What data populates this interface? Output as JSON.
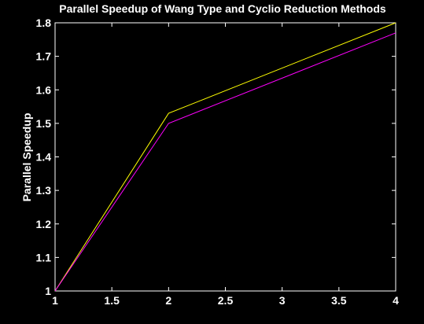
{
  "chart_data": {
    "type": "line",
    "title": "Parallel Speedup of Wang Type and Cyclio Reduction Methods",
    "xlabel": "",
    "ylabel": "Parallel Speedup",
    "xlim": [
      1,
      4
    ],
    "ylim": [
      1,
      1.8
    ],
    "xticks": [
      "1",
      "1.5",
      "2",
      "2.5",
      "3",
      "3.5",
      "4"
    ],
    "yticks": [
      "1",
      "1.1",
      "1.2",
      "1.3",
      "1.4",
      "1.5",
      "1.6",
      "1.7",
      "1.8"
    ],
    "grid": false,
    "series": [
      {
        "color": "#ffff00",
        "x": [
          1,
          2,
          4
        ],
        "y": [
          1.0,
          1.53,
          1.8
        ]
      },
      {
        "color": "#ff00ff",
        "x": [
          1,
          2,
          4
        ],
        "y": [
          1.0,
          1.5,
          1.77
        ]
      }
    ]
  }
}
